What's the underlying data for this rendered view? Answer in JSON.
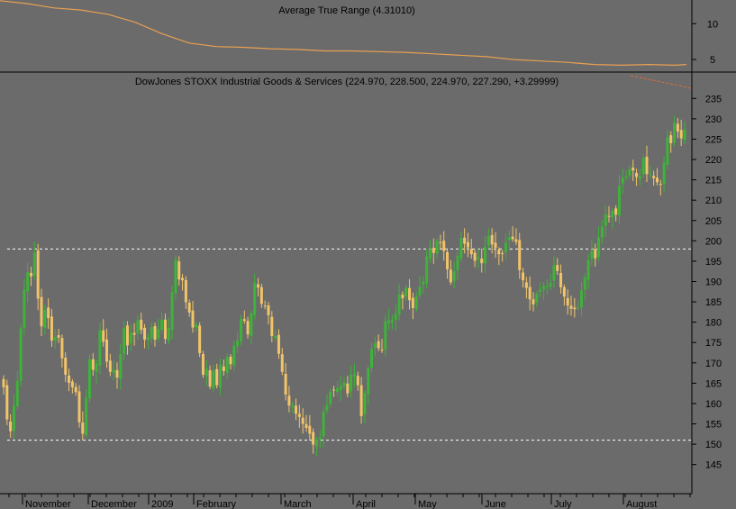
{
  "chart_data": [
    {
      "type": "line",
      "title": "Average True Range (4.31010)",
      "y_ticks": [
        5,
        10
      ],
      "ylim": [
        3.5,
        13.3
      ],
      "x": [
        0,
        30,
        60,
        90,
        120,
        150,
        180,
        210,
        240,
        270,
        300,
        330,
        360,
        390,
        420,
        450,
        480,
        510,
        540,
        570,
        600,
        630,
        660,
        690,
        720,
        750,
        762
      ],
      "values": [
        13.2,
        12.8,
        12.2,
        11.9,
        11.3,
        10.2,
        8.6,
        7.3,
        6.8,
        6.7,
        6.5,
        6.4,
        6.2,
        6.2,
        6.1,
        6.0,
        5.8,
        5.6,
        5.4,
        5.0,
        4.8,
        4.6,
        4.3,
        4.2,
        4.3,
        4.2,
        4.3
      ],
      "color": "#e8a052"
    },
    {
      "type": "bar",
      "title": "DowJones STOXX Industrial Goods & Services (224.970, 228.500, 224.970, 227.290, +3.29999)",
      "y_ticks": [
        145,
        150,
        155,
        160,
        165,
        170,
        175,
        180,
        185,
        190,
        195,
        200,
        205,
        210,
        215,
        220,
        225,
        230,
        235
      ],
      "ylim": [
        140.5,
        237.5
      ],
      "reference_levels": [
        198,
        151
      ],
      "x_tick_labels": [
        "November",
        "December",
        "2009",
        "February",
        "March",
        "April",
        "May",
        "June",
        "July",
        "August"
      ],
      "close": [
        164.0,
        156.1,
        153.2,
        159.5,
        165.6,
        178.5,
        188.0,
        192.3,
        191.3,
        197.1,
        185.8,
        179.0,
        183.0,
        181.0,
        175.5,
        176.3,
        176.2,
        171.1,
        167.1,
        165.1,
        164.0,
        162.8,
        155.4,
        152.6,
        161.4,
        170.9,
        168.3,
        169.8,
        178.1,
        175.2,
        170.3,
        167.8,
        168.3,
        166.4,
        172.1,
        178.6,
        174.3,
        177.4,
        176.9,
        180.5,
        178.1,
        175.7,
        176.4,
        178.8,
        175.7,
        178.4,
        180.6,
        175.9,
        178.6,
        187.4,
        195.4,
        190.5,
        190.3,
        184.9,
        182.4,
        178.7,
        179.5,
        172.4,
        167.1,
        168.6,
        164.2,
        168.1,
        164.5,
        169.6,
        168.0,
        171.4,
        169.7,
        174.2,
        175.5,
        180.9,
        180.3,
        177.0,
        182.2,
        189.7,
        188.5,
        184.5,
        183.9,
        181.7,
        176.6,
        176.6,
        172.2,
        167.8,
        162.2,
        159.5,
        159.6,
        157.5,
        156.7,
        155.0,
        154.0,
        152.6,
        149.9,
        151.2,
        151.7,
        158.0,
        159.6,
        162.9,
        163.3,
        163.8,
        164.3,
        165.2,
        162.5,
        167.1,
        167.2,
        164.5,
        156.9,
        162.6,
        168.7,
        173.4,
        174.8,
        173.6,
        173.1,
        180.2,
        180.5,
        180.6,
        182.0,
        186.8,
        185.9,
        188.5,
        185.4,
        183.5,
        186.3,
        188.7,
        190.0,
        196.2,
        198.0,
        197.0,
        200.0,
        199.5,
        197.5,
        193.0,
        189.8,
        192.5,
        196.3,
        200.7,
        199.3,
        198.4,
        196.7,
        195.1,
        196.0,
        194.5,
        198.5,
        201.1,
        199.1,
        198.3,
        196.7,
        196.8,
        199.6,
        200.9,
        200.4,
        199.7,
        192.8,
        190.3,
        188.4,
        185.6,
        184.4,
        186.9,
        188.0,
        188.9,
        188.9,
        189.7,
        194.0,
        192.6,
        188.6,
        186.3,
        184.1,
        183.3,
        183.2,
        183.6,
        187.8,
        191.0,
        195.3,
        197.5,
        195.7,
        200.8,
        203.5,
        206.5,
        205.9,
        207.4,
        206.4,
        213.5,
        215.5,
        215.8,
        217.6,
        217.3,
        215.7,
        215.9,
        220.4,
        216.4,
        216.4,
        215.4,
        214.4,
        213.9,
        219.2,
        225.4,
        224.0,
        229.0,
        226.9,
        225.2,
        227.3
      ],
      "up_color": "#3fb23a",
      "down_color": "#f2c46a"
    }
  ]
}
